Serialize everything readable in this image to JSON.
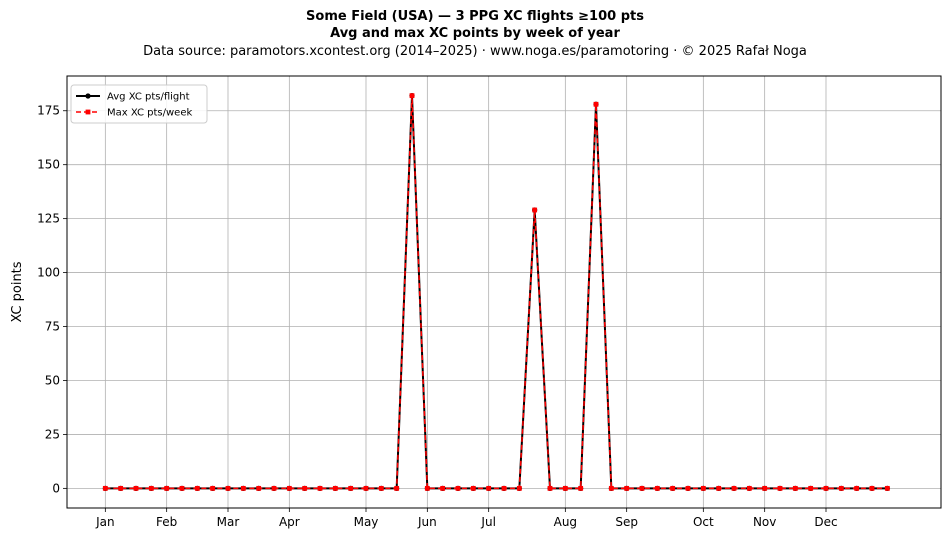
{
  "chart_data": {
    "type": "line",
    "title_line1": "Some Field (USA)  —  3 PPG XC flights ≥100 pts",
    "title_line2": "Avg and max XC points by week of year",
    "subtitle": "Data source: paramotors.xcontest.org (2014–2025)  ·  www.noga.es/paramotoring  ·  © 2025 Rafał Noga",
    "xlabel": "",
    "ylabel": "XC points",
    "xlim": [
      -2.5,
      54.5
    ],
    "ylim": [
      -9.1,
      191.1
    ],
    "x": [
      0,
      1,
      2,
      3,
      4,
      5,
      6,
      7,
      8,
      9,
      10,
      11,
      12,
      13,
      14,
      15,
      16,
      17,
      18,
      19,
      20,
      21,
      22,
      23,
      24,
      25,
      26,
      27,
      28,
      29,
      30,
      31,
      32,
      33,
      34,
      35,
      36,
      37,
      38,
      39,
      40,
      41,
      42,
      43,
      44,
      45,
      46,
      47,
      48,
      49,
      50,
      51
    ],
    "series": [
      {
        "name": "Avg XC pts/flight",
        "color": "#000000",
        "style": "solid",
        "marker": "circle",
        "values": [
          0,
          0,
          0,
          0,
          0,
          0,
          0,
          0,
          0,
          0,
          0,
          0,
          0,
          0,
          0,
          0,
          0,
          0,
          0,
          0,
          182,
          0,
          0,
          0,
          0,
          0,
          0,
          0,
          129,
          0,
          0,
          0,
          178,
          0,
          0,
          0,
          0,
          0,
          0,
          0,
          0,
          0,
          0,
          0,
          0,
          0,
          0,
          0,
          0,
          0,
          0,
          0
        ]
      },
      {
        "name": "Max XC pts/week",
        "color": "#ff0000",
        "style": "dashed",
        "marker": "square",
        "values": [
          0,
          0,
          0,
          0,
          0,
          0,
          0,
          0,
          0,
          0,
          0,
          0,
          0,
          0,
          0,
          0,
          0,
          0,
          0,
          0,
          182,
          0,
          0,
          0,
          0,
          0,
          0,
          0,
          129,
          0,
          0,
          0,
          178,
          0,
          0,
          0,
          0,
          0,
          0,
          0,
          0,
          0,
          0,
          0,
          0,
          0,
          0,
          0,
          0,
          0,
          0,
          0
        ]
      }
    ],
    "x_ticks": [
      {
        "value": 0,
        "label": "Jan"
      },
      {
        "value": 4,
        "label": "Feb"
      },
      {
        "value": 8,
        "label": "Mar"
      },
      {
        "value": 12,
        "label": "Apr"
      },
      {
        "value": 17,
        "label": "May"
      },
      {
        "value": 21,
        "label": "Jun"
      },
      {
        "value": 25,
        "label": "Jul"
      },
      {
        "value": 30,
        "label": "Aug"
      },
      {
        "value": 34,
        "label": "Sep"
      },
      {
        "value": 39,
        "label": "Oct"
      },
      {
        "value": 43,
        "label": "Nov"
      },
      {
        "value": 47,
        "label": "Dec"
      }
    ],
    "y_ticks": [
      0,
      25,
      50,
      75,
      100,
      125,
      150,
      175
    ],
    "grid": true,
    "legend_position": "top-left"
  }
}
